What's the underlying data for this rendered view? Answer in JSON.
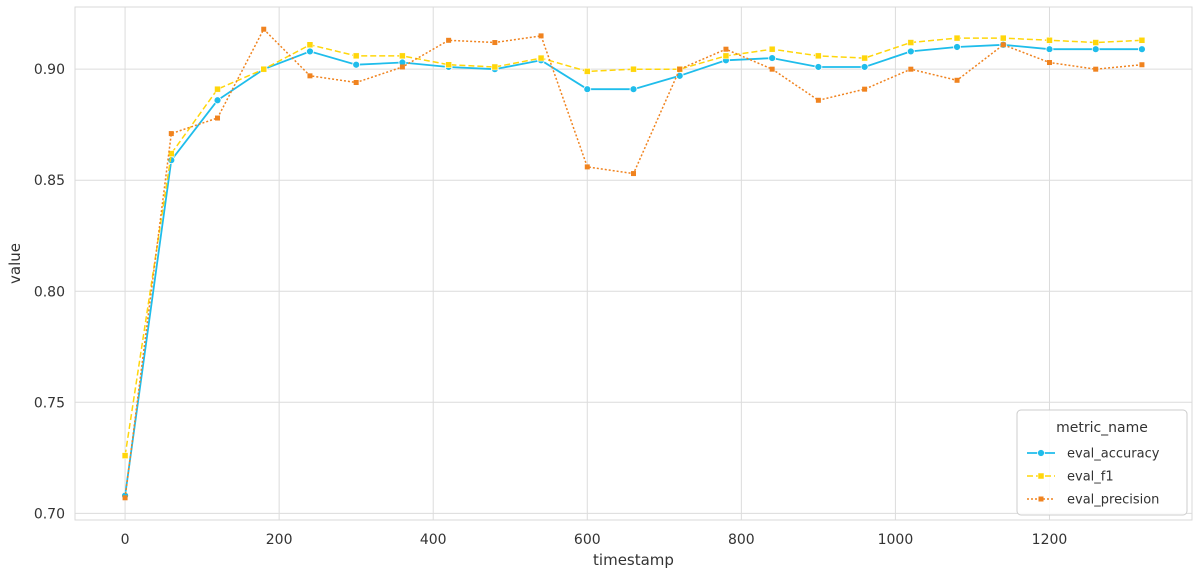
{
  "chart_data": {
    "type": "line",
    "xlabel": "timestamp",
    "ylabel": "value",
    "xlim": [
      -65,
      1385
    ],
    "ylim": [
      0.697,
      0.928
    ],
    "xticks": [
      0,
      200,
      400,
      600,
      800,
      1000,
      1200
    ],
    "xtick_labels": [
      "0",
      "200",
      "400",
      "600",
      "800",
      "1000",
      "1200"
    ],
    "yticks": [
      0.7,
      0.75,
      0.8,
      0.85,
      0.9
    ],
    "ytick_labels": [
      "0.70",
      "0.75",
      "0.80",
      "0.85",
      "0.90"
    ],
    "grid": true,
    "legend": {
      "title": "metric_name",
      "placement": "bottom-right"
    },
    "series": [
      {
        "name": "eval_accuracy",
        "color": "#1FBDEB",
        "line_style": "solid",
        "marker": "circle",
        "x": [
          0,
          60,
          120,
          180,
          240,
          300,
          360,
          420,
          480,
          540,
          600,
          660,
          720,
          780,
          840,
          900,
          960,
          1020,
          1080,
          1140,
          1200,
          1260,
          1320
        ],
        "y": [
          0.708,
          0.859,
          0.886,
          0.9,
          0.908,
          0.902,
          0.903,
          0.901,
          0.9,
          0.904,
          0.891,
          0.891,
          0.897,
          0.904,
          0.905,
          0.901,
          0.901,
          0.908,
          0.91,
          0.911,
          0.909,
          0.909,
          0.909
        ]
      },
      {
        "name": "eval_f1",
        "color": "#FFD60A",
        "line_style": "dashed",
        "marker": "square",
        "x": [
          0,
          60,
          120,
          180,
          240,
          300,
          360,
          420,
          480,
          540,
          600,
          660,
          720,
          780,
          840,
          900,
          960,
          1020,
          1080,
          1140,
          1200,
          1260,
          1320
        ],
        "y": [
          0.726,
          0.862,
          0.891,
          0.9,
          0.911,
          0.906,
          0.906,
          0.902,
          0.901,
          0.905,
          0.899,
          0.9,
          0.9,
          0.906,
          0.909,
          0.906,
          0.905,
          0.912,
          0.914,
          0.914,
          0.913,
          0.912,
          0.913
        ]
      },
      {
        "name": "eval_precision",
        "color": "#F0831F",
        "line_style": "dotted",
        "marker": "x",
        "x": [
          0,
          60,
          120,
          180,
          240,
          300,
          360,
          420,
          480,
          540,
          600,
          660,
          720,
          780,
          840,
          900,
          960,
          1020,
          1080,
          1140,
          1200,
          1260,
          1320
        ],
        "y": [
          0.707,
          0.871,
          0.878,
          0.918,
          0.897,
          0.894,
          0.901,
          0.913,
          0.912,
          0.915,
          0.856,
          0.853,
          0.9,
          0.909,
          0.9,
          0.886,
          0.891,
          0.9,
          0.895,
          0.911,
          0.903,
          0.9,
          0.902
        ]
      }
    ]
  }
}
